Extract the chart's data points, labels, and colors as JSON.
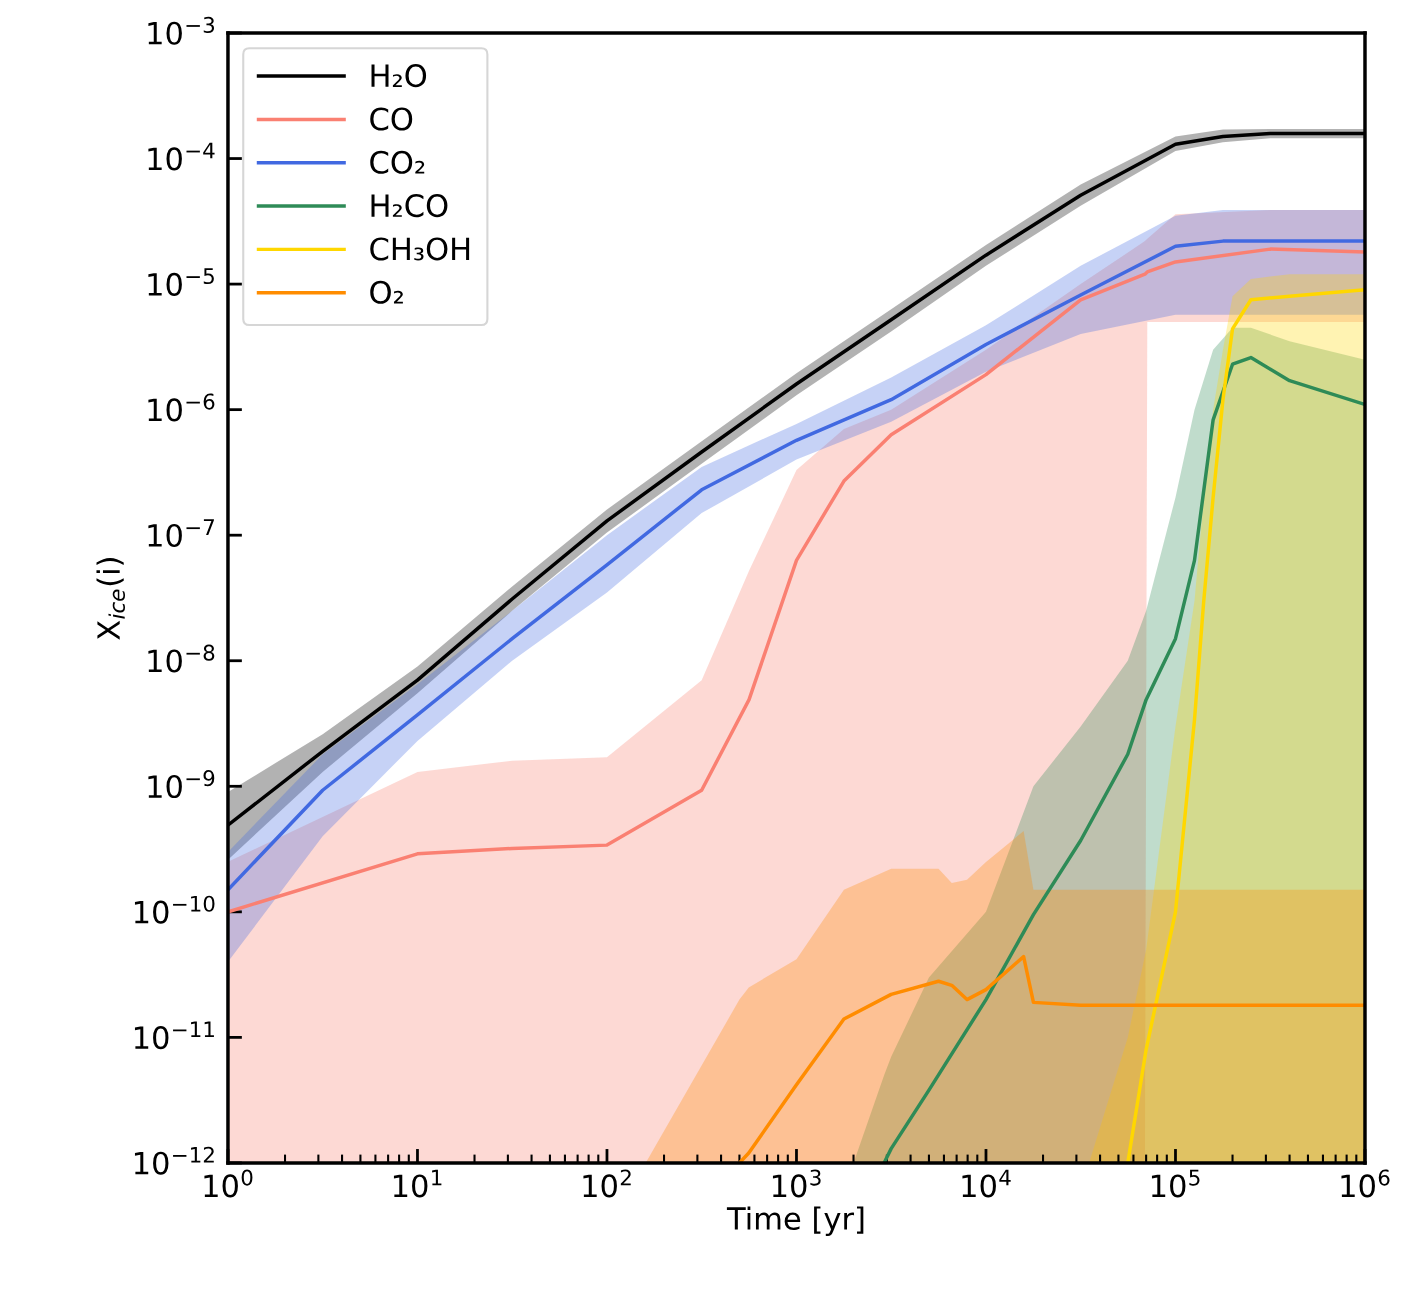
{
  "chart_data": {
    "type": "line",
    "xlabel": "Time [yr]",
    "ylabel": "X$_{ice}$(i)",
    "log": "xy",
    "grid": false,
    "legend": "top left",
    "line_style": "solid",
    "marker": "none",
    "xlim": [
      1,
      1000000
    ],
    "ylim": [
      1e-12,
      0.001
    ],
    "xticks": [
      {
        "value": 1,
        "label": "10$^{0}$"
      },
      {
        "value": 2,
        "label": null
      },
      {
        "value": 3,
        "label": null
      },
      {
        "value": 4,
        "label": null
      },
      {
        "value": 5,
        "label": null
      },
      {
        "value": 6,
        "label": null
      },
      {
        "value": 7,
        "label": null
      },
      {
        "value": 8,
        "label": null
      },
      {
        "value": 9,
        "label": null
      },
      {
        "value": 10,
        "label": "10$^{1}$"
      },
      {
        "value": 20,
        "label": null
      },
      {
        "value": 30,
        "label": null
      },
      {
        "value": 40,
        "label": null
      },
      {
        "value": 50,
        "label": null
      },
      {
        "value": 60,
        "label": null
      },
      {
        "value": 70,
        "label": null
      },
      {
        "value": 80,
        "label": null
      },
      {
        "value": 90,
        "label": null
      },
      {
        "value": 100,
        "label": "10$^{2}$"
      },
      {
        "value": 200,
        "label": null
      },
      {
        "value": 300,
        "label": null
      },
      {
        "value": 400,
        "label": null
      },
      {
        "value": 500,
        "label": null
      },
      {
        "value": 600,
        "label": null
      },
      {
        "value": 700,
        "label": null
      },
      {
        "value": 800,
        "label": null
      },
      {
        "value": 900,
        "label": null
      },
      {
        "value": 1000,
        "label": "10$^{3}$"
      },
      {
        "value": 2000,
        "label": null
      },
      {
        "value": 3000,
        "label": null
      },
      {
        "value": 4000,
        "label": null
      },
      {
        "value": 5000,
        "label": null
      },
      {
        "value": 6000,
        "label": null
      },
      {
        "value": 7000,
        "label": null
      },
      {
        "value": 8000,
        "label": null
      },
      {
        "value": 9000,
        "label": null
      },
      {
        "value": 10000,
        "label": "10$^{4}$"
      },
      {
        "value": 20000,
        "label": null
      },
      {
        "value": 30000,
        "label": null
      },
      {
        "value": 40000,
        "label": null
      },
      {
        "value": 50000,
        "label": null
      },
      {
        "value": 60000,
        "label": null
      },
      {
        "value": 70000,
        "label": null
      },
      {
        "value": 80000,
        "label": null
      },
      {
        "value": 90000,
        "label": null
      },
      {
        "value": 100000,
        "label": "10$^{5}$"
      },
      {
        "value": 200000,
        "label": null
      },
      {
        "value": 300000,
        "label": null
      },
      {
        "value": 400000,
        "label": null
      },
      {
        "value": 500000,
        "label": null
      },
      {
        "value": 600000,
        "label": null
      },
      {
        "value": 700000,
        "label": null
      },
      {
        "value": 800000,
        "label": null
      },
      {
        "value": 900000,
        "label": null
      },
      {
        "value": 1000000,
        "label": "10$^{6}$"
      }
    ],
    "yticks": [
      {
        "value": 1e-12,
        "label": "10$^{−12}$"
      },
      {
        "value": 1e-11,
        "label": "10$^{−11}$"
      },
      {
        "value": 1e-10,
        "label": "10$^{−10}$"
      },
      {
        "value": 1e-09,
        "label": "10$^{−9}$"
      },
      {
        "value": 1e-08,
        "label": "10$^{−8}$"
      },
      {
        "value": 1e-07,
        "label": "10$^{−7}$"
      },
      {
        "value": 1e-06,
        "label": "10$^{−6}$"
      },
      {
        "value": 1e-05,
        "label": "10$^{−5}$"
      },
      {
        "value": 0.0001,
        "label": "10$^{−4}$"
      },
      {
        "value": 0.001,
        "label": "10$^{−3}$"
      }
    ],
    "series": [
      {
        "name": "H₂O",
        "color": "#000000",
        "x": [
          1,
          3.16,
          10,
          31.6,
          100,
          316,
          1000,
          3160,
          10000,
          31600,
          100000,
          178000,
          316000,
          1000000
        ],
        "values": [
          4.9e-10,
          1.9e-09,
          7e-09,
          3.1e-08,
          1.3e-07,
          4.6e-07,
          1.6e-06,
          5.2e-06,
          1.7e-05,
          5.1e-05,
          0.00013,
          0.00015,
          0.000158,
          0.000158
        ],
        "lower": [
          2.6e-10,
          1.3e-09,
          5.5e-09,
          2.5e-08,
          1.05e-07,
          3.7e-07,
          1.3e-06,
          4.2e-06,
          1.4e-05,
          4.2e-05,
          0.000115,
          0.000135,
          0.000145,
          0.000145
        ],
        "upper": [
          9e-10,
          2.6e-09,
          9e-09,
          3.9e-08,
          1.6e-07,
          5.6e-07,
          1.95e-06,
          6.3e-06,
          2.05e-05,
          6.2e-05,
          0.00015,
          0.00017,
          0.000172,
          0.000172
        ]
      },
      {
        "name": "CO",
        "color": "#fa8072",
        "x": [
          1,
          10,
          31.6,
          100,
          316,
          562,
          1000,
          1780,
          3160,
          10000,
          31600,
          69000,
          71000,
          100000,
          316000,
          1000000
        ],
        "values": [
          1e-10,
          2.9e-10,
          3.2e-10,
          3.4e-10,
          9.3e-10,
          4.9e-09,
          6.3e-08,
          2.7e-07,
          6.3e-07,
          1.9e-06,
          7.5e-06,
          1.2e-05,
          1.25e-05,
          1.5e-05,
          1.9e-05,
          1.8e-05
        ],
        "lower": [
          1e-12,
          1e-12,
          1e-12,
          1e-12,
          1e-12,
          1e-12,
          1e-12,
          1e-12,
          1e-12,
          1e-12,
          1e-12,
          1e-12,
          5e-06,
          5e-06,
          5e-06,
          5e-06
        ],
        "upper": [
          2.5e-10,
          1.3e-09,
          1.6e-09,
          1.7e-09,
          7e-09,
          5.2e-08,
          3.3e-07,
          7e-07,
          1e-06,
          3e-06,
          1e-05,
          2.2e-05,
          2.3e-05,
          3.6e-05,
          3.9e-05,
          3.9e-05
        ]
      },
      {
        "name": "CO₂",
        "color": "#4169e1",
        "x": [
          1,
          3.16,
          10,
          31.6,
          100,
          316,
          1000,
          3160,
          10000,
          31600,
          100000,
          178000,
          1000000
        ],
        "values": [
          1.5e-10,
          9.3e-10,
          3.7e-09,
          1.5e-08,
          5.8e-08,
          2.3e-07,
          5.7e-07,
          1.2e-06,
          3.3e-06,
          8.2e-06,
          2e-05,
          2.2e-05,
          2.2e-05
        ],
        "lower": [
          4e-11,
          4e-10,
          2.3e-09,
          1e-08,
          3.5e-08,
          1.5e-07,
          4e-07,
          8e-07,
          2e-06,
          4e-06,
          5.7e-06,
          5.7e-06,
          5.7e-06
        ],
        "upper": [
          3e-10,
          1.8e-09,
          6.5e-09,
          2.5e-08,
          1e-07,
          3.5e-07,
          7.7e-07,
          1.8e-06,
          4.7e-06,
          1.4e-05,
          3.5e-05,
          3.9e-05,
          3.9e-05
        ]
      },
      {
        "name": "H₂CO",
        "color": "#2e8b57",
        "x": [
          2000,
          2900,
          3160,
          5000,
          10000,
          17800,
          31600,
          56000,
          70000,
          100000,
          126000,
          158000,
          200000,
          250000,
          400000,
          1000000
        ],
        "values": [
          null,
          1e-12,
          1.3e-12,
          3.8e-12,
          2e-11,
          9.5e-11,
          3.7e-10,
          1.8e-09,
          4.9e-09,
          1.5e-08,
          6.3e-08,
          8.3e-07,
          2.3e-06,
          2.6e-06,
          1.7e-06,
          1.1e-06
        ],
        "lower": [
          1e-12,
          1e-12,
          1e-12,
          1e-12,
          1e-12,
          1e-12,
          1e-12,
          1e-12,
          1e-12,
          1e-12,
          1e-12,
          1e-12,
          1e-12,
          1e-12,
          1e-12,
          1e-12
        ],
        "upper": [
          1e-12,
          5e-12,
          7e-12,
          3e-11,
          1e-10,
          1e-09,
          3e-09,
          1e-08,
          2.5e-08,
          2e-07,
          1e-06,
          3e-06,
          4.5e-06,
          4.5e-06,
          3.5e-06,
          2.5e-06
        ]
      },
      {
        "name": "CH₃OH",
        "color": "#ffd700",
        "x": [
          35000,
          56000,
          70000,
          100000,
          126000,
          141000,
          158000,
          178000,
          200000,
          250000,
          400000,
          1000000
        ],
        "values": [
          null,
          1e-12,
          8e-12,
          1e-10,
          3.4e-09,
          3e-08,
          2e-07,
          1.2e-06,
          4.4e-06,
          7.5e-06,
          8e-06,
          9e-06
        ],
        "lower": [
          1e-12,
          1e-12,
          1e-12,
          1e-12,
          1e-12,
          1e-12,
          1e-12,
          1e-12,
          1e-12,
          1e-12,
          1e-12,
          1e-12
        ],
        "upper": [
          1e-12,
          1e-11,
          5e-11,
          3e-09,
          3e-08,
          2e-07,
          1e-06,
          3e-06,
          8e-06,
          1.1e-05,
          1.2e-05,
          1.2e-05
        ]
      },
      {
        "name": "O₂",
        "color": "#ff8c00",
        "x": [
          160,
          500,
          560,
          1000,
          1780,
          3160,
          5620,
          6600,
          7940,
          10000,
          15800,
          17800,
          31600,
          1000000
        ],
        "values": [
          null,
          1e-12,
          1.2e-12,
          4.2e-12,
          1.4e-11,
          2.2e-11,
          2.8e-11,
          2.6e-11,
          2e-11,
          2.4e-11,
          4.4e-11,
          1.9e-11,
          1.8e-11,
          1.8e-11
        ],
        "lower": [
          1e-12,
          1e-12,
          1e-12,
          1e-12,
          1e-12,
          1e-12,
          1e-12,
          1e-12,
          1e-12,
          1e-12,
          1e-12,
          1e-12,
          1e-12,
          1e-12
        ],
        "upper": [
          1e-12,
          2e-11,
          2.5e-11,
          4.2e-11,
          1.5e-10,
          2.2e-10,
          2.2e-10,
          1.7e-10,
          1.8e-10,
          2.5e-10,
          4.4e-10,
          1.5e-10,
          1.5e-10,
          1.5e-10
        ]
      }
    ]
  }
}
